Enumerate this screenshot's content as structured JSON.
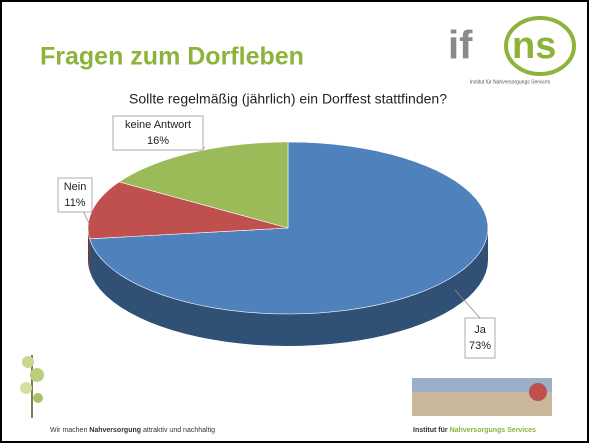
{
  "slide": {
    "title": "Fragen zum Dorfleben",
    "logo": {
      "left": "if",
      "right": "ns",
      "tagline": "Institut für Nahversorgungs Services"
    },
    "footer_left": {
      "before": "Wir machen",
      "bold": "Nahversorgung",
      "after": "attraktiv und nachhaltig"
    },
    "footer_right": {
      "before": "Institut für",
      "highlight": "Nahversorgungs Services"
    }
  },
  "chart_data": {
    "type": "pie",
    "title": "Sollte regelmäßig (jährlich) ein Dorffest stattfinden?",
    "categories": [
      "Ja",
      "Nein",
      "keine Antwort"
    ],
    "values": [
      73,
      11,
      16
    ],
    "value_labels": [
      "73%",
      "11%",
      "16%"
    ],
    "colors": [
      "#4f81bd",
      "#c0504d",
      "#9bbb59"
    ]
  }
}
